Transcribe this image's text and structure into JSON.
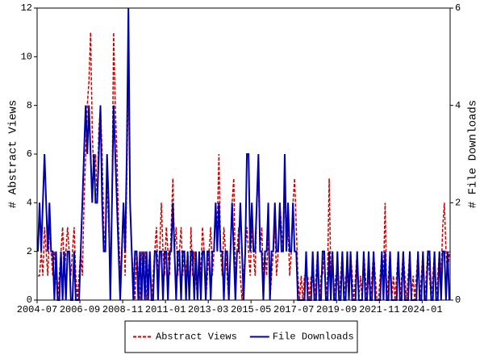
{
  "chart_data": {
    "type": "line",
    "categories": [
      "2004-07",
      null,
      null,
      null,
      null,
      null,
      null,
      null,
      null,
      null,
      null,
      null,
      null,
      null,
      null,
      null,
      null,
      null,
      null,
      null,
      null,
      null,
      null,
      null,
      null,
      null,
      "2006-09",
      null,
      null,
      null,
      null,
      null,
      null,
      null,
      null,
      null,
      null,
      null,
      null,
      null,
      null,
      null,
      null,
      null,
      null,
      null,
      null,
      null,
      null,
      null,
      null,
      null,
      "2008-11",
      null,
      null,
      null,
      null,
      null,
      null,
      null,
      null,
      null,
      null,
      null,
      null,
      null,
      null,
      null,
      null,
      null,
      null,
      null,
      null,
      null,
      null,
      null,
      null,
      null,
      "2011-01",
      null,
      null,
      null,
      null,
      null,
      null,
      null,
      null,
      null,
      null,
      null,
      null,
      null,
      null,
      null,
      null,
      null,
      null,
      null,
      null,
      null,
      null,
      null,
      null,
      null,
      "2013-03",
      null,
      null,
      null,
      null,
      null,
      null,
      null,
      null,
      null,
      null,
      null,
      null,
      null,
      null,
      null,
      null,
      null,
      null,
      null,
      null,
      null,
      null,
      null,
      null,
      null,
      "2015-05",
      null,
      null,
      null,
      null,
      null,
      null,
      null,
      null,
      null,
      null,
      null,
      null,
      null,
      null,
      null,
      null,
      null,
      null,
      null,
      null,
      null,
      null,
      null,
      null,
      null,
      "2017-07",
      null,
      null,
      null,
      null,
      null,
      null,
      null,
      null,
      null,
      null,
      null,
      null,
      null,
      null,
      null,
      null,
      null,
      null,
      null,
      null,
      null,
      null,
      null,
      null,
      null,
      "2019-09",
      null,
      null,
      null,
      null,
      null,
      null,
      null,
      null,
      null,
      null,
      null,
      null,
      null,
      null,
      null,
      null,
      null,
      null,
      null,
      null,
      null,
      null,
      null,
      null,
      null,
      "2021-11",
      null,
      null,
      null,
      null,
      null,
      null,
      null,
      null,
      null,
      null,
      null,
      null,
      null,
      null,
      null,
      null,
      null,
      null,
      null,
      null,
      null,
      null,
      null,
      null,
      null,
      "2024-01",
      null,
      null,
      null,
      null,
      null,
      null,
      null,
      null,
      null,
      null,
      null,
      null,
      null,
      null,
      null,
      null
    ],
    "series": [
      {
        "name": "Abstract Views",
        "color": "#cc0000",
        "dash": true,
        "values": [
          1,
          1,
          2,
          1,
          3,
          2,
          1,
          3,
          2,
          1,
          2,
          1,
          0,
          1,
          2,
          3,
          1,
          2,
          3,
          2,
          1,
          2,
          3,
          1,
          0,
          1,
          2,
          1,
          4,
          6,
          8,
          9,
          11,
          7,
          5,
          6,
          4,
          7,
          8,
          6,
          3,
          2,
          5,
          3,
          1,
          4,
          11,
          8,
          6,
          3,
          1,
          2,
          4,
          1,
          5,
          9,
          4,
          2,
          1,
          0,
          2,
          1,
          0,
          2,
          1,
          2,
          0,
          1,
          2,
          0,
          1,
          2,
          3,
          1,
          2,
          4,
          2,
          1,
          3,
          2,
          1,
          3,
          5,
          2,
          3,
          1,
          2,
          3,
          1,
          2,
          1,
          2,
          0,
          3,
          1,
          2,
          1,
          0,
          2,
          1,
          3,
          2,
          0,
          1,
          2,
          3,
          1,
          2,
          4,
          3,
          6,
          2,
          1,
          3,
          2,
          1,
          0,
          2,
          4,
          5,
          1,
          2,
          3,
          1,
          0,
          1,
          2,
          3,
          2,
          1,
          3,
          2,
          1,
          4,
          5,
          2,
          3,
          1,
          2,
          1,
          3,
          0,
          1,
          2,
          3,
          1,
          2,
          4,
          3,
          2,
          5,
          2,
          3,
          1,
          2,
          4,
          5,
          3,
          1,
          0,
          1,
          0,
          1,
          1,
          1,
          0,
          1,
          1,
          0,
          1,
          2,
          0,
          1,
          1,
          2,
          0,
          1,
          5,
          1,
          2,
          0,
          1,
          1,
          0,
          1,
          2,
          0,
          1,
          1,
          0,
          2,
          1,
          0,
          1,
          2,
          0,
          1,
          0,
          2,
          1,
          0,
          1,
          0,
          1,
          2,
          1,
          0,
          0,
          1,
          2,
          1,
          4,
          0,
          1,
          2,
          0,
          1,
          0,
          1,
          2,
          0,
          1,
          2,
          1,
          0,
          1,
          2,
          0,
          1,
          0,
          1,
          2,
          0,
          1,
          2,
          0,
          1,
          2,
          1,
          0,
          1,
          2,
          0,
          1,
          2,
          1,
          3,
          4,
          2,
          1,
          2
        ]
      },
      {
        "name": "File Downloads",
        "color": "#0000aa",
        "axis": "y2",
        "values": [
          1,
          2,
          1,
          2,
          3,
          2,
          1,
          2,
          1,
          1,
          0,
          1,
          0,
          0,
          1,
          0,
          1,
          0,
          1,
          1,
          0,
          0,
          1,
          0,
          0,
          0,
          1,
          2,
          3,
          4,
          3,
          4,
          3,
          2,
          3,
          2,
          2,
          3,
          4,
          2,
          1,
          1,
          3,
          2,
          0,
          2,
          4,
          3,
          2,
          1,
          0,
          1,
          2,
          1,
          3,
          6,
          2,
          1,
          0,
          1,
          1,
          0,
          1,
          0,
          1,
          0,
          1,
          0,
          1,
          0,
          0,
          1,
          1,
          0,
          1,
          1,
          0,
          1,
          1,
          0,
          1,
          1,
          2,
          1,
          0,
          1,
          1,
          0,
          1,
          1,
          0,
          1,
          0,
          1,
          1,
          0,
          1,
          0,
          1,
          0,
          1,
          1,
          0,
          1,
          1,
          0,
          1,
          1,
          2,
          1,
          2,
          1,
          1,
          0,
          1,
          1,
          0,
          1,
          2,
          1,
          0,
          1,
          1,
          2,
          1,
          0,
          1,
          3,
          3,
          1,
          2,
          1,
          1,
          2,
          3,
          1,
          1,
          0,
          1,
          1,
          2,
          0,
          1,
          1,
          2,
          1,
          1,
          2,
          1,
          1,
          3,
          1,
          2,
          1,
          1,
          2,
          1,
          1,
          0,
          0,
          0,
          0,
          0,
          1,
          0,
          0,
          0,
          1,
          0,
          0,
          1,
          0,
          0,
          1,
          1,
          0,
          0,
          1,
          0,
          1,
          0,
          0,
          1,
          0,
          0,
          1,
          0,
          0,
          1,
          0,
          1,
          0,
          0,
          0,
          1,
          0,
          0,
          0,
          1,
          0,
          0,
          1,
          0,
          0,
          1,
          0,
          0,
          0,
          0,
          1,
          0,
          1,
          0,
          0,
          1,
          0,
          0,
          0,
          0,
          1,
          0,
          0,
          1,
          0,
          0,
          0,
          1,
          0,
          0,
          0,
          0,
          1,
          0,
          0,
          1,
          0,
          0,
          1,
          1,
          0,
          0,
          1,
          0,
          0,
          1,
          0,
          1,
          1,
          0,
          1,
          0
        ]
      }
    ],
    "y_label": "# Abstract Views",
    "y2_label": "# File Downloads",
    "ylim": [
      0,
      12
    ],
    "yticks": [
      0,
      2,
      4,
      6,
      8,
      10,
      12
    ],
    "y2lim": [
      0,
      6
    ],
    "y2ticks": [
      0,
      2,
      4,
      6
    ],
    "legend": "bottom"
  }
}
